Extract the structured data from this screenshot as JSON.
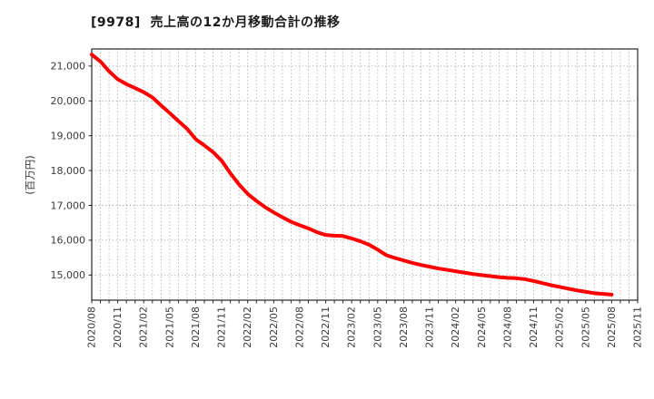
{
  "chart_data": {
    "type": "line",
    "title": "[9978]  売上高の12か月移動合計の推移",
    "ylabel": "(百万円)",
    "series_name": "売上高12か月移動合計",
    "legend": false,
    "grid": true,
    "line_color": "#ff0000",
    "grid_color": "#a6a6a6",
    "axis_color": "#262626",
    "text_color": "#3a3a3a",
    "title_color": "#1a1a1a",
    "background_color": "#ffffff",
    "x_tick_labels": [
      "2020/08",
      "2020/11",
      "2021/02",
      "2021/05",
      "2021/08",
      "2021/11",
      "2022/02",
      "2022/05",
      "2022/08",
      "2022/11",
      "2023/02",
      "2023/05",
      "2023/08",
      "2023/11",
      "2024/02",
      "2024/05",
      "2024/08",
      "2024/11",
      "2025/02",
      "2025/05",
      "2025/08",
      "2025/11"
    ],
    "x_axis_total_months": 64,
    "y_ticks": [
      15000,
      16000,
      17000,
      18000,
      19000,
      20000,
      21000
    ],
    "y_tick_labels": [
      "15,000",
      "16,000",
      "17,000",
      "18,000",
      "19,000",
      "20,000",
      "21,000"
    ],
    "ylim": [
      14280,
      21490
    ],
    "months": [
      "2020/08",
      "2020/09",
      "2020/10",
      "2020/11",
      "2020/12",
      "2021/01",
      "2021/02",
      "2021/03",
      "2021/04",
      "2021/05",
      "2021/06",
      "2021/07",
      "2021/08",
      "2021/09",
      "2021/10",
      "2021/11",
      "2021/12",
      "2022/01",
      "2022/02",
      "2022/03",
      "2022/04",
      "2022/05",
      "2022/06",
      "2022/07",
      "2022/08",
      "2022/09",
      "2022/10",
      "2022/11",
      "2022/12",
      "2023/01",
      "2023/02",
      "2023/03",
      "2023/04",
      "2023/05",
      "2023/06",
      "2023/07",
      "2023/08",
      "2023/09",
      "2023/10",
      "2023/11",
      "2023/12",
      "2024/01",
      "2024/02",
      "2024/03",
      "2024/04",
      "2024/05",
      "2024/06",
      "2024/07",
      "2024/08",
      "2024/09",
      "2024/10",
      "2024/11",
      "2024/12",
      "2025/01",
      "2025/02",
      "2025/03",
      "2025/04",
      "2025/05",
      "2025/06",
      "2025/07",
      "2025/08"
    ],
    "values": [
      21330,
      21130,
      20850,
      20620,
      20480,
      20370,
      20250,
      20100,
      19870,
      19650,
      19420,
      19200,
      18900,
      18720,
      18530,
      18280,
      17920,
      17600,
      17330,
      17130,
      16950,
      16800,
      16660,
      16530,
      16430,
      16340,
      16230,
      16150,
      16130,
      16120,
      16050,
      15970,
      15870,
      15730,
      15570,
      15490,
      15420,
      15350,
      15290,
      15240,
      15190,
      15150,
      15110,
      15070,
      15030,
      15000,
      14970,
      14940,
      14920,
      14910,
      14880,
      14830,
      14770,
      14710,
      14660,
      14610,
      14560,
      14520,
      14480,
      14460,
      14440
    ]
  }
}
